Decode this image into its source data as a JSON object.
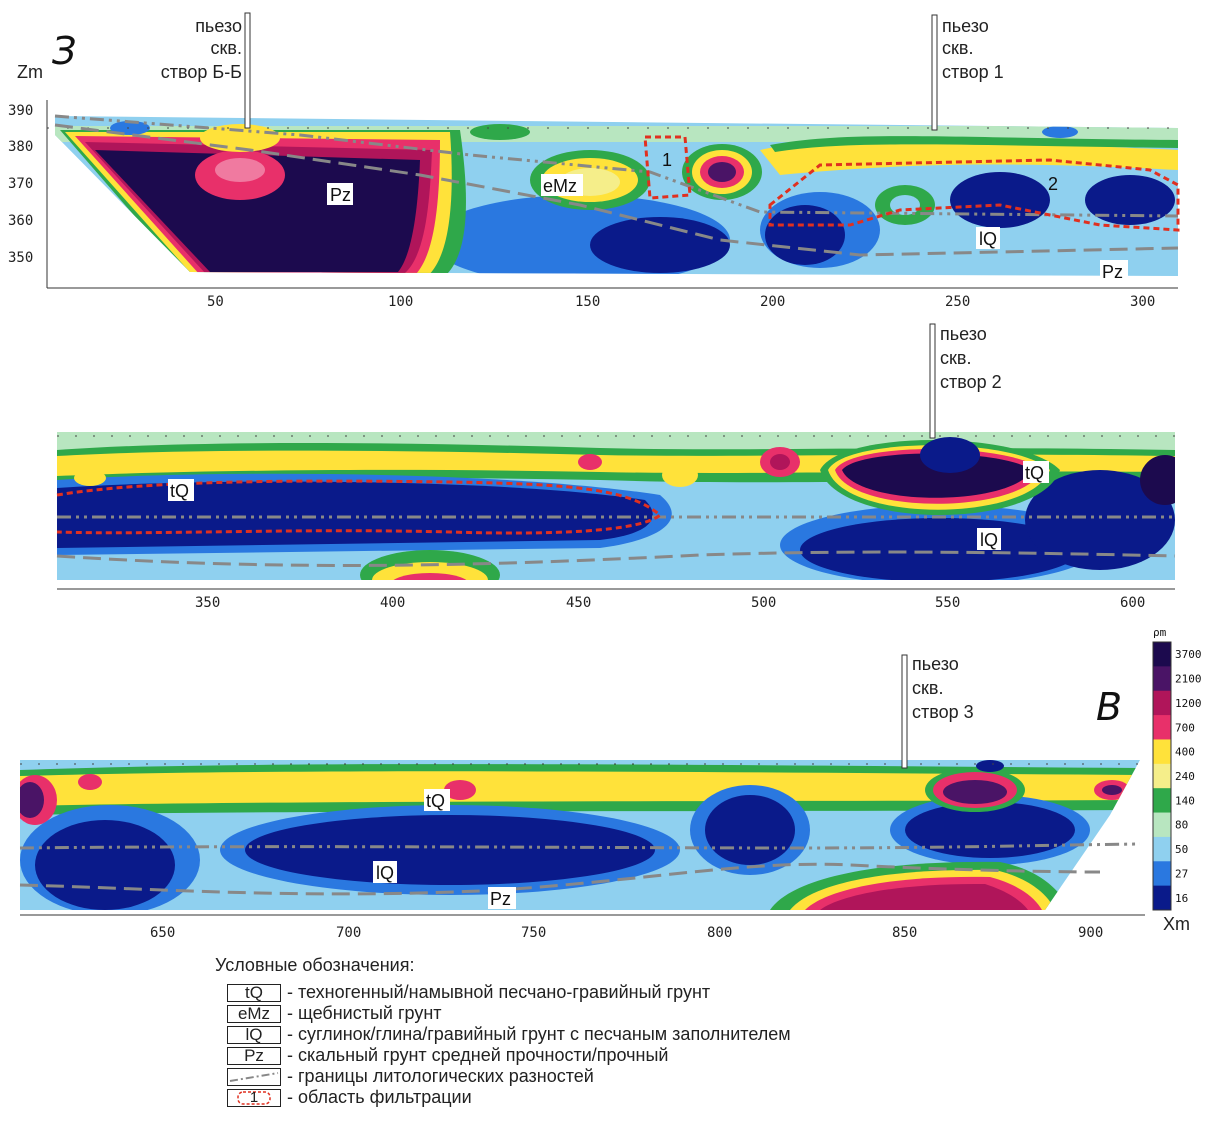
{
  "direction_west": "З",
  "direction_east": "В",
  "z_axis_label": "Zm",
  "x_axis_label": "Xm",
  "scale_unit": "ρm",
  "sections": [
    {
      "x_ticks": [
        "50",
        "100",
        "150",
        "200",
        "250",
        "300"
      ],
      "z_ticks": [
        "390",
        "380",
        "370",
        "360",
        "350"
      ],
      "wells": [
        {
          "lines": [
            "пьезо",
            "скв.",
            "створ Б-Б"
          ]
        },
        {
          "lines": [
            "пьезо",
            "скв.",
            "створ 1"
          ]
        }
      ],
      "labels": [
        "Pz",
        "eMz",
        "1",
        "2",
        "lQ",
        "Pz"
      ]
    },
    {
      "x_ticks": [
        "350",
        "400",
        "450",
        "500",
        "550",
        "600"
      ],
      "wells": [
        {
          "lines": [
            "пьезо",
            "скв.",
            "створ 2"
          ]
        }
      ],
      "labels": [
        "tQ",
        "tQ",
        "lQ"
      ]
    },
    {
      "x_ticks": [
        "650",
        "700",
        "750",
        "800",
        "850",
        "900"
      ],
      "wells": [
        {
          "lines": [
            "пьезо",
            "скв.",
            "створ 3"
          ]
        }
      ],
      "labels": [
        "tQ",
        "lQ",
        "Pz"
      ]
    }
  ],
  "color_scale": {
    "values": [
      "3700",
      "2100",
      "1200",
      "700",
      "400",
      "240",
      "140",
      "80",
      "50",
      "27",
      "16"
    ],
    "colors": [
      "#1c0a4e",
      "#4a1466",
      "#b0155a",
      "#e8306a",
      "#ffe23a",
      "#f5ee8a",
      "#2fa84a",
      "#b8e6c0",
      "#8fd0ef",
      "#2a78e0",
      "#0a1a8a"
    ]
  },
  "legend": {
    "title": "Условные обозначения:",
    "items": [
      {
        "symbol": "tQ",
        "text": "- техногенный/намывной песчано-гравийный грунт"
      },
      {
        "symbol": "eMz",
        "text": "- щебнистый грунт"
      },
      {
        "symbol": "lQ",
        "text": "- суглинок/глина/гравийный грунт с песчаным заполнителем"
      },
      {
        "symbol": "Pz",
        "text": "- скальный грунт средней прочности/прочный"
      },
      {
        "symbol": "",
        "text": "- границы литологических разностей"
      },
      {
        "symbol": "1",
        "text": "- область фильтрации"
      }
    ]
  }
}
